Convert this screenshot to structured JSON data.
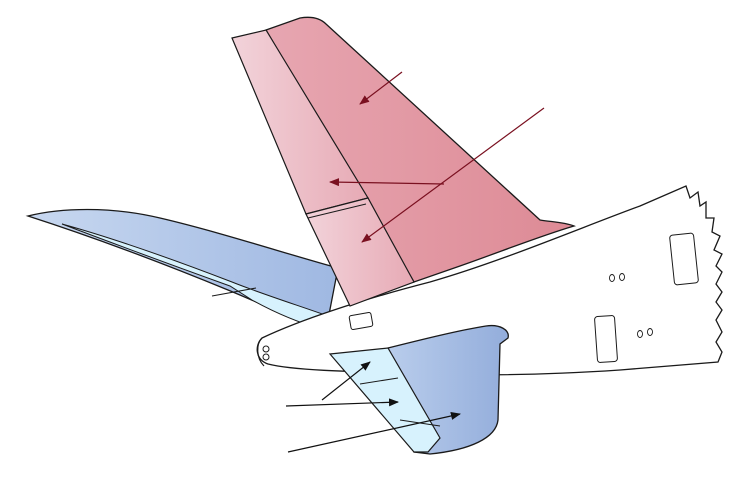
{
  "diagram": {
    "subject": "aircraft-empennage",
    "colors": {
      "vertical_stabilizer": "#dc8a95",
      "vertical_stabilizer_light": "#ecc4cd",
      "horizontal_stabilizer": "#a9bfe3",
      "horizontal_stabilizer_light": "#d7f2fd",
      "fuselage": "#ffffff",
      "outline": "#1a1a1a",
      "callout_upper": "#7a1020",
      "callout_lower": "#111111"
    },
    "parts": [
      {
        "key": "rudder_upper",
        "kind": "control-surface"
      },
      {
        "key": "rudder_lower",
        "kind": "control-surface"
      },
      {
        "key": "fin",
        "kind": "fixed-surface"
      },
      {
        "key": "elevator",
        "kind": "control-surface"
      },
      {
        "key": "horizontal_stabilizer",
        "kind": "fixed-surface"
      },
      {
        "key": "fuselage_tail_cone",
        "kind": "structure"
      }
    ],
    "callouts": [
      {
        "key": "fin-callout",
        "target": "fin"
      },
      {
        "key": "rudder-callout",
        "target": "rudder_upper"
      },
      {
        "key": "rudder-lower-callout",
        "target": "rudder_lower"
      },
      {
        "key": "elevator-callout",
        "target": "elevator"
      },
      {
        "key": "elevator-tab-callout",
        "target": "elevator"
      },
      {
        "key": "stabilizer-callout",
        "target": "horizontal_stabilizer"
      }
    ]
  }
}
